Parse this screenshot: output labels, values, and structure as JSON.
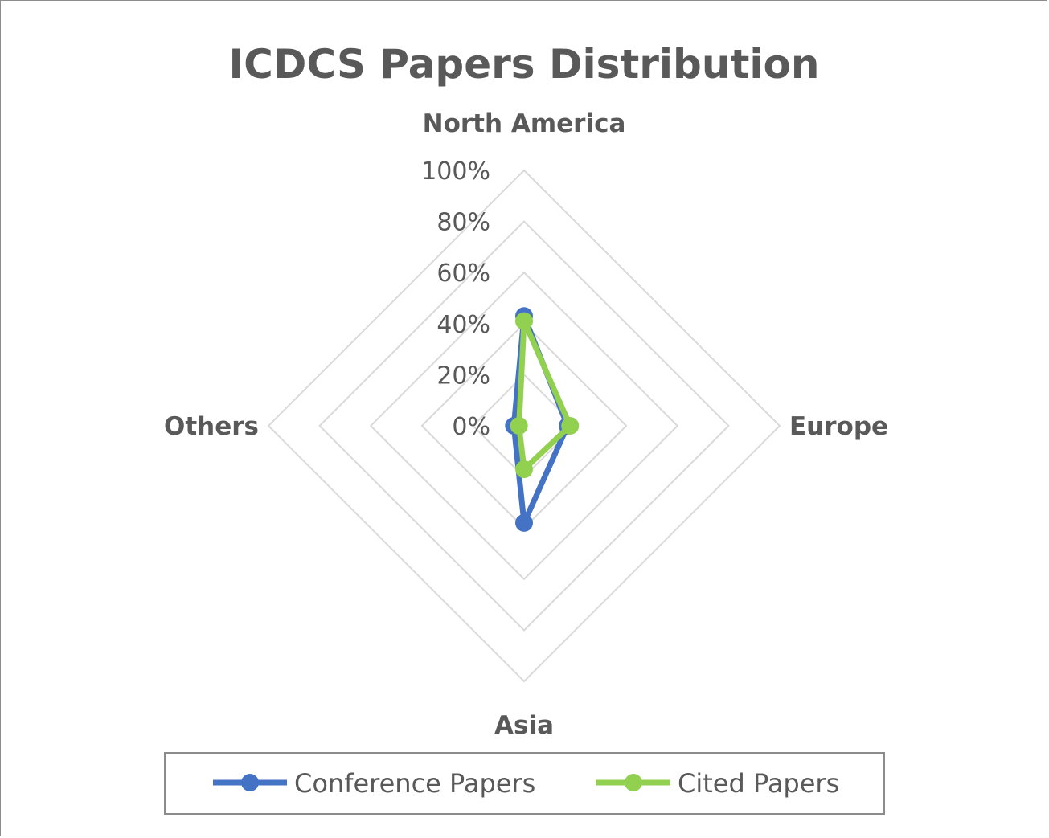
{
  "chart_data": {
    "type": "radar",
    "title": "ICDCS Papers Distribution",
    "categories": [
      "North America",
      "Europe",
      "Asia",
      "Others"
    ],
    "r_ticks": [
      "0%",
      "20%",
      "40%",
      "60%",
      "80%",
      "100%"
    ],
    "rlim": [
      0,
      100
    ],
    "grid": true,
    "legend_position": "bottom",
    "series": [
      {
        "name": "Conference Papers",
        "color": "#4472C4",
        "values": [
          43,
          17,
          38,
          4
        ]
      },
      {
        "name": "Cited Papers",
        "color": "#92D050",
        "values": [
          41,
          18,
          17,
          2
        ]
      }
    ]
  }
}
